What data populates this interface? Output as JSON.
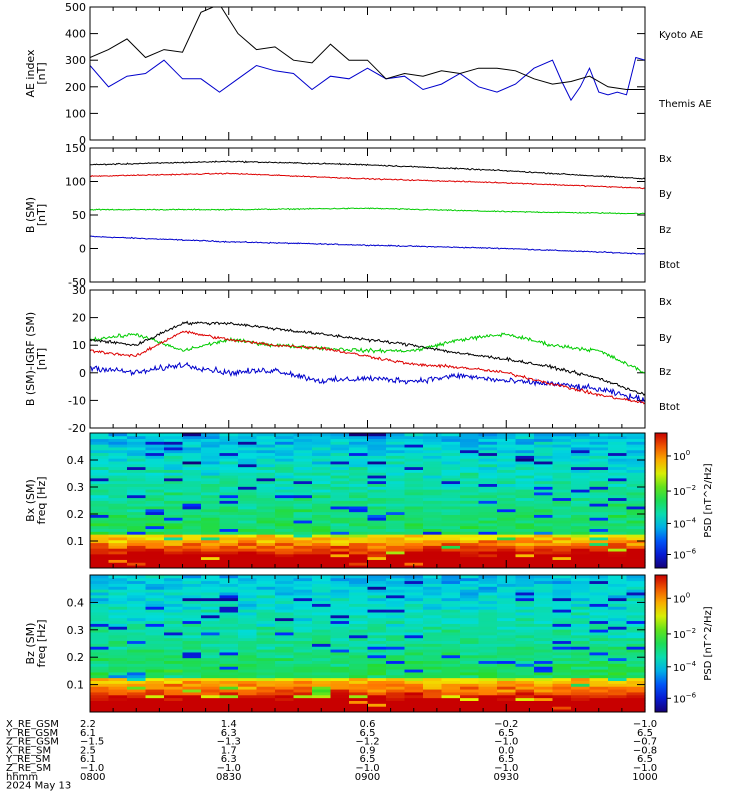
{
  "figure": {
    "date_label": "2024 May 13",
    "time_row_label": "hhmm"
  },
  "chart_data": [
    {
      "id": "ae",
      "type": "line",
      "ylabel": "AE index [nT]",
      "ylim": [
        0,
        500
      ],
      "yticks": [
        0,
        100,
        200,
        300,
        400,
        500
      ],
      "xlim": [
        0,
        120
      ],
      "series": [
        {
          "name": "Kyoto AE",
          "color": "#0000cc",
          "x": [
            0,
            4,
            8,
            12,
            16,
            20,
            24,
            28,
            32,
            36,
            40,
            44,
            48,
            52,
            56,
            60,
            64,
            68,
            72,
            76,
            80,
            84,
            88,
            92,
            96,
            100,
            102,
            104,
            106,
            108,
            110,
            112,
            114,
            116,
            118,
            120
          ],
          "y": [
            280,
            200,
            240,
            250,
            300,
            230,
            230,
            180,
            230,
            280,
            260,
            250,
            190,
            240,
            230,
            270,
            230,
            240,
            190,
            210,
            250,
            200,
            180,
            210,
            270,
            300,
            220,
            150,
            200,
            270,
            180,
            170,
            180,
            170,
            310,
            300
          ]
        },
        {
          "name": "Themis AE",
          "color": "#000000",
          "x": [
            0,
            4,
            8,
            12,
            16,
            20,
            24,
            28,
            32,
            36,
            40,
            44,
            48,
            52,
            56,
            60,
            64,
            68,
            72,
            76,
            80,
            84,
            88,
            92,
            96,
            100,
            104,
            108,
            112,
            116,
            120
          ],
          "y": [
            310,
            340,
            380,
            310,
            340,
            330,
            480,
            510,
            400,
            340,
            350,
            300,
            290,
            360,
            300,
            300,
            230,
            250,
            240,
            260,
            250,
            270,
            270,
            260,
            230,
            210,
            220,
            240,
            200,
            190,
            190
          ]
        }
      ]
    },
    {
      "id": "bsm",
      "type": "line",
      "ylabel": "B (SM) [nT]",
      "ylim": [
        -50,
        150
      ],
      "yticks": [
        -50,
        0,
        50,
        100,
        150
      ],
      "xlim": [
        0,
        120
      ],
      "series": [
        {
          "name": "Bx",
          "color": "#0000cc",
          "x": [
            0,
            30,
            60,
            90,
            120
          ],
          "y": [
            18,
            10,
            5,
            0,
            -8
          ]
        },
        {
          "name": "By",
          "color": "#00cc00",
          "x": [
            0,
            30,
            60,
            90,
            120
          ],
          "y": [
            58,
            58,
            60,
            55,
            52
          ]
        },
        {
          "name": "Bz",
          "color": "#dd0000",
          "x": [
            0,
            30,
            60,
            90,
            120
          ],
          "y": [
            108,
            112,
            104,
            98,
            90
          ]
        },
        {
          "name": "Btot",
          "color": "#000000",
          "x": [
            0,
            30,
            60,
            90,
            120
          ],
          "y": [
            125,
            130,
            125,
            116,
            104
          ]
        }
      ]
    },
    {
      "id": "bdiff",
      "type": "line",
      "ylabel": "B (SM)-IGRF (SM) [nT]",
      "ylim": [
        -20,
        30
      ],
      "yticks": [
        -20,
        -10,
        0,
        10,
        20,
        30
      ],
      "xlim": [
        0,
        120
      ],
      "series": [
        {
          "name": "Bx",
          "color": "#0000cc",
          "x": [
            0,
            10,
            20,
            30,
            40,
            50,
            60,
            70,
            80,
            90,
            100,
            110,
            120
          ],
          "y": [
            2,
            0,
            3,
            0,
            1,
            -3,
            -2,
            -3,
            -1,
            -3,
            -4,
            -6,
            -10
          ]
        },
        {
          "name": "By",
          "color": "#00cc00",
          "x": [
            0,
            10,
            20,
            30,
            40,
            50,
            60,
            70,
            80,
            90,
            100,
            110,
            120
          ],
          "y": [
            12,
            14,
            8,
            12,
            10,
            9,
            8,
            8,
            12,
            14,
            10,
            8,
            0
          ]
        },
        {
          "name": "Bz",
          "color": "#dd0000",
          "x": [
            0,
            10,
            20,
            30,
            40,
            50,
            60,
            70,
            80,
            90,
            100,
            110,
            120
          ],
          "y": [
            8,
            6,
            15,
            12,
            10,
            9,
            6,
            3,
            2,
            0,
            -4,
            -8,
            -11
          ]
        },
        {
          "name": "Btot",
          "color": "#000000",
          "x": [
            0,
            10,
            20,
            30,
            40,
            50,
            60,
            70,
            80,
            90,
            100,
            110,
            120
          ],
          "y": [
            12,
            10,
            18,
            18,
            16,
            14,
            12,
            10,
            7,
            5,
            2,
            -2,
            -8
          ]
        }
      ]
    },
    {
      "id": "bx_spec",
      "type": "heatmap",
      "ylabel_top": "Bx (SM)",
      "ylabel_bottom": "freq [Hz]",
      "ylim": [
        0,
        0.5
      ],
      "yticks": [
        0.1,
        0.2,
        0.3,
        0.4
      ],
      "xlim": [
        0,
        120
      ],
      "colorbar_label": "PSD [nT^2/Hz]",
      "colorbar_ticks": [
        1.0,
        0.01,
        0.0001,
        1e-06
      ]
    },
    {
      "id": "bz_spec",
      "type": "heatmap",
      "ylabel_top": "Bz (SM)",
      "ylabel_bottom": "freq [Hz]",
      "ylim": [
        0,
        0.5
      ],
      "yticks": [
        0.1,
        0.2,
        0.3,
        0.4
      ],
      "xlim": [
        0,
        120
      ],
      "colorbar_label": "PSD [nT^2/Hz]",
      "colorbar_ticks": [
        1.0,
        0.01,
        0.0001,
        1e-06
      ]
    }
  ],
  "ephemeris": {
    "x_minutes": [
      0,
      30,
      60,
      90,
      120
    ],
    "rows": [
      {
        "label": "X_RE_GSM",
        "values": [
          "2.2",
          "1.4",
          "0.6",
          "−0.2",
          "−1.0"
        ]
      },
      {
        "label": "Y_RE_GSM",
        "values": [
          "6.1",
          "6.3",
          "6.5",
          "6.5",
          "6.5"
        ]
      },
      {
        "label": "Z_RE_GSM",
        "values": [
          "−1.5",
          "−1.3",
          "−1.2",
          "−1.0",
          "−0.7"
        ]
      },
      {
        "label": "X_RE_SM",
        "values": [
          "2.5",
          "1.7",
          "0.9",
          "0.0",
          "−0.8"
        ]
      },
      {
        "label": "Y_RE_SM",
        "values": [
          "6.1",
          "6.3",
          "6.5",
          "6.5",
          "6.5"
        ]
      },
      {
        "label": "Z_RE_SM",
        "values": [
          "−1.0",
          "−1.0",
          "−1.0",
          "−1.0",
          "−1.0"
        ]
      },
      {
        "label": "hhmm",
        "values": [
          "0800",
          "0830",
          "0900",
          "0930",
          "1000"
        ]
      }
    ]
  }
}
